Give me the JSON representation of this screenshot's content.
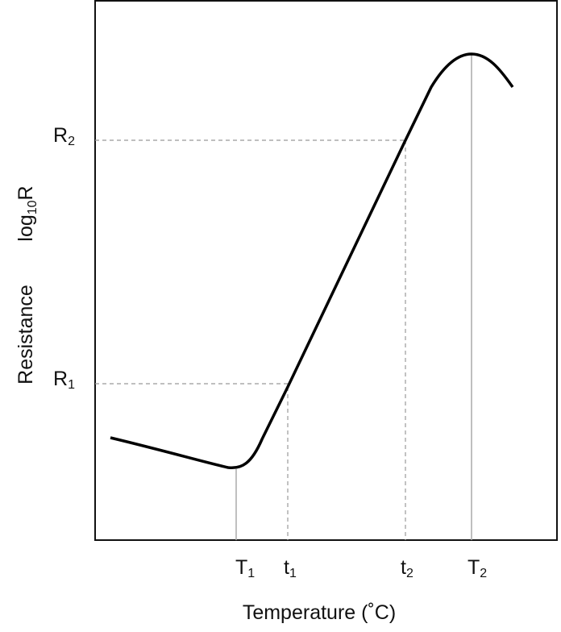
{
  "y_axis": {
    "label": "Resistance",
    "quantity": {
      "base": "log",
      "sub": "10",
      "suffix": "R"
    }
  },
  "x_axis": {
    "label": "Temperature (˚C)"
  },
  "y_markers": [
    {
      "base": "R",
      "sub": "1"
    },
    {
      "base": "R",
      "sub": "2"
    }
  ],
  "x_markers": [
    {
      "base": "T",
      "sub": "1"
    },
    {
      "base": "t",
      "sub": "1"
    },
    {
      "base": "t",
      "sub": "2"
    },
    {
      "base": "T",
      "sub": "2"
    }
  ]
}
